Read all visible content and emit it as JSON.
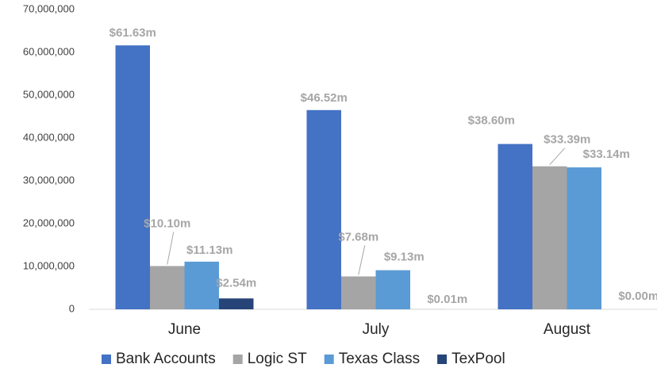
{
  "chart_data": {
    "type": "bar",
    "categories": [
      "June",
      "July",
      "August"
    ],
    "series": [
      {
        "name": "Bank Accounts",
        "color": "#4472c4",
        "values": [
          61630000,
          46520000,
          38600000
        ],
        "value_labels": [
          "$61.63m",
          "$46.52m",
          "$38.60m"
        ]
      },
      {
        "name": "Logic ST",
        "color": "#a5a5a5",
        "values": [
          10100000,
          7680000,
          33390000
        ],
        "value_labels": [
          "$10.10m",
          "$7.68m",
          "$33.39m"
        ]
      },
      {
        "name": "Texas Class",
        "color": "#5b9bd5",
        "values": [
          11130000,
          9130000,
          33140000
        ],
        "value_labels": [
          "$11.13m",
          "$9.13m",
          "$33.14m"
        ]
      },
      {
        "name": "TexPool",
        "color": "#264478",
        "values": [
          2540000,
          10000,
          0
        ],
        "value_labels": [
          "$2.54m",
          "$0.01m",
          "$0.00m"
        ]
      }
    ],
    "ylim": [
      0,
      70000000
    ],
    "yticks": [
      0,
      {
        "value": 10000000,
        "label": "10,000,000"
      },
      {
        "value": 20000000,
        "label": "20,000,000"
      },
      {
        "value": 30000000,
        "label": "30,000,000"
      },
      {
        "value": 40000000,
        "label": "40,000,000"
      },
      {
        "value": 50000000,
        "label": "50,000,000"
      },
      {
        "value": 60000000,
        "label": "60,000,000"
      },
      {
        "value": 70000000,
        "label": "70,000,000"
      }
    ],
    "grid": false,
    "legend": "bottom"
  }
}
